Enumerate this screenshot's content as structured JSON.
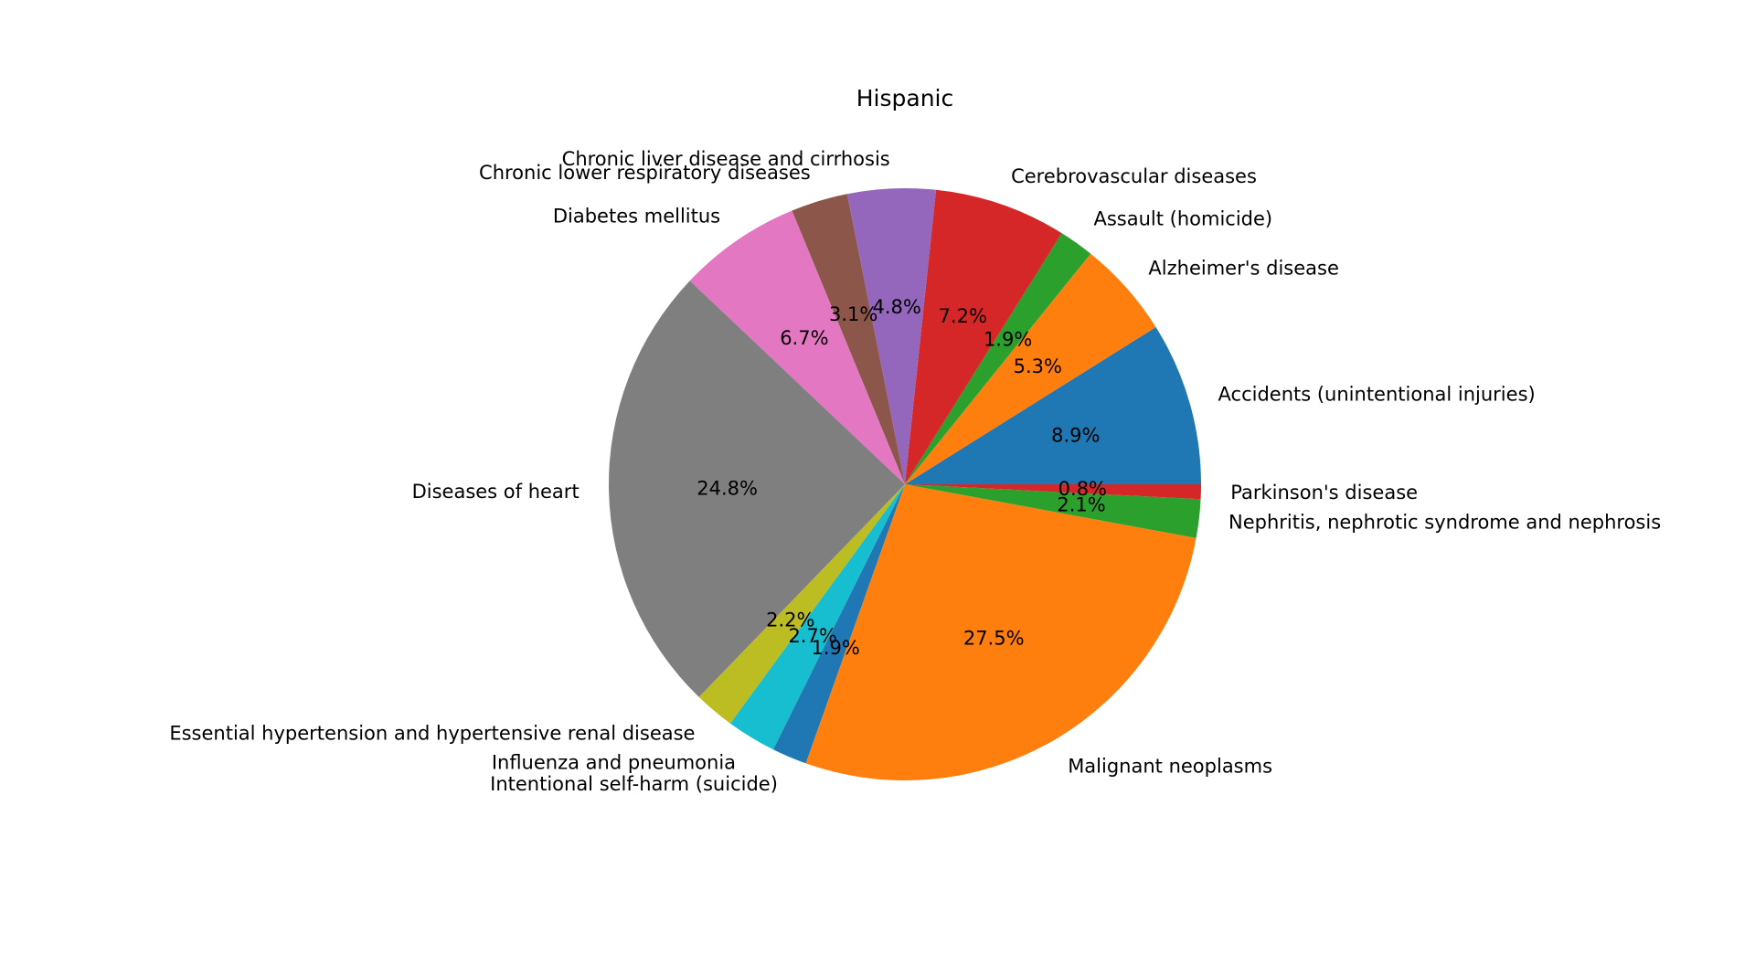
{
  "chart_data": {
    "type": "pie",
    "title": "Hispanic",
    "start_angle_deg": 0,
    "direction": "counterclockwise",
    "slices": [
      {
        "label": "Accidents (unintentional injuries)",
        "value": 8.9,
        "pct_label": "8.9%",
        "color": "#1f77b4"
      },
      {
        "label": "Alzheimer's disease",
        "value": 5.3,
        "pct_label": "5.3%",
        "color": "#ff7f0e"
      },
      {
        "label": "Assault (homicide)",
        "value": 1.9,
        "pct_label": "1.9%",
        "color": "#2ca02c"
      },
      {
        "label": "Cerebrovascular diseases",
        "value": 7.2,
        "pct_label": "7.2%",
        "color": "#d62728"
      },
      {
        "label": "Chronic liver disease and cirrhosis",
        "value": 4.8,
        "pct_label": "4.8%",
        "color": "#9467bd"
      },
      {
        "label": "Chronic lower respiratory diseases",
        "value": 3.1,
        "pct_label": "3.1%",
        "color": "#8c564b"
      },
      {
        "label": "Diabetes mellitus",
        "value": 6.7,
        "pct_label": "6.7%",
        "color": "#e377c2"
      },
      {
        "label": "Diseases of heart",
        "value": 24.8,
        "pct_label": "24.8%",
        "color": "#7f7f7f"
      },
      {
        "label": "Essential hypertension and hypertensive renal disease",
        "value": 2.2,
        "pct_label": "2.2%",
        "color": "#bcbd22"
      },
      {
        "label": "Influenza and pneumonia",
        "value": 2.7,
        "pct_label": "2.7%",
        "color": "#17becf"
      },
      {
        "label": "Intentional self-harm (suicide)",
        "value": 1.9,
        "pct_label": "1.9%",
        "color": "#1f77b4"
      },
      {
        "label": "Malignant neoplasms",
        "value": 27.5,
        "pct_label": "27.5%",
        "color": "#ff7f0e"
      },
      {
        "label": "Nephritis, nephrotic syndrome and nephrosis",
        "value": 2.1,
        "pct_label": "2.1%",
        "color": "#2ca02c"
      },
      {
        "label": "Parkinson's disease",
        "value": 0.8,
        "pct_label": "0.8%",
        "color": "#d62728"
      }
    ]
  }
}
